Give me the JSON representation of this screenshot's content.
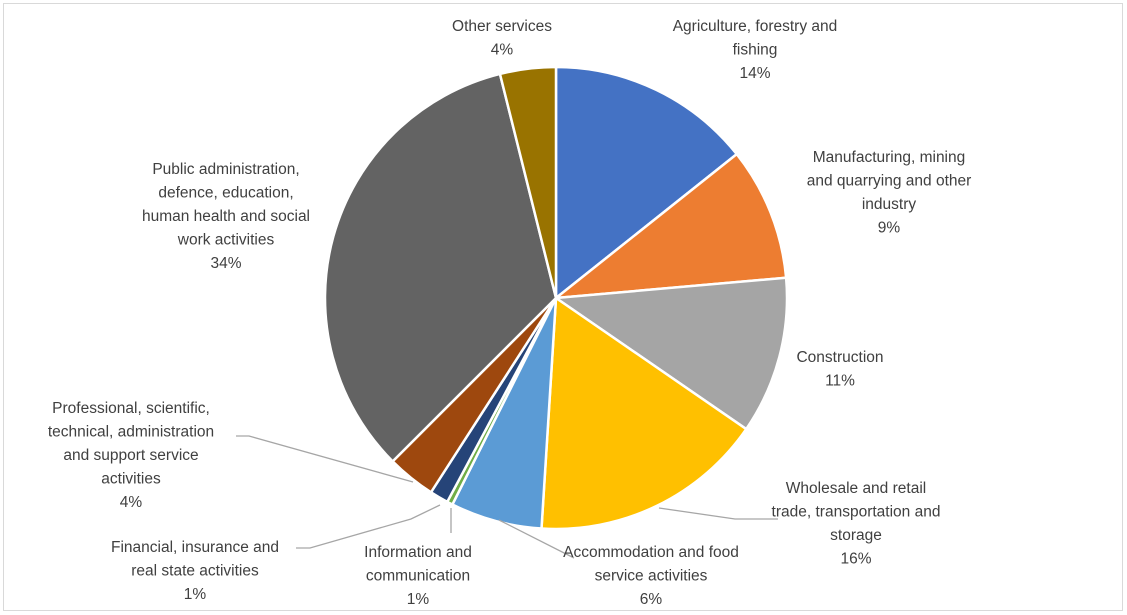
{
  "chart_data": {
    "type": "pie",
    "title": "",
    "start_angle_deg": 0,
    "direction": "clockwise",
    "slices": [
      {
        "name": "Agriculture, forestry and fishing",
        "label_lines": [
          "Agriculture, forestry and",
          "fishing"
        ],
        "pct_label": "14%",
        "value": 14.3,
        "color": "#4472C4"
      },
      {
        "name": "Manufacturing, mining and quarrying and other industry",
        "label_lines": [
          "Manufacturing, mining",
          "and quarrying and other",
          "industry"
        ],
        "pct_label": "9%",
        "value": 9.3,
        "color": "#ED7D31"
      },
      {
        "name": "Construction",
        "label_lines": [
          "Construction"
        ],
        "pct_label": "11%",
        "value": 11.0,
        "color": "#A5A5A5"
      },
      {
        "name": "Wholesale and retail trade, transportation and storage",
        "label_lines": [
          "Wholesale and retail",
          "trade, transportation and",
          "storage"
        ],
        "pct_label": "16%",
        "value": 16.4,
        "color": "#FFC000"
      },
      {
        "name": "Accommodation and food service activities",
        "label_lines": [
          "Accommodation and food",
          "service activities"
        ],
        "pct_label": "6%",
        "value": 6.4,
        "color": "#5B9BD5"
      },
      {
        "name": "Information and communication",
        "label_lines": [
          "Information and",
          "communication"
        ],
        "pct_label": "1%",
        "value": 0.4,
        "color": "#70AD47"
      },
      {
        "name": "Financial, insurance and real state activities",
        "label_lines": [
          "Financial, insurance and",
          "real state activities"
        ],
        "pct_label": "1%",
        "value": 1.3,
        "color": "#264478"
      },
      {
        "name": "Professional, scientific, technical, administration and support service activities",
        "label_lines": [
          "Professional, scientific,",
          "technical, administration",
          "and support service",
          "activities"
        ],
        "pct_label": "4%",
        "value": 3.4,
        "color": "#9E480E"
      },
      {
        "name": "Public administration, defence, education, human health and social work activities",
        "label_lines": [
          "Public administration,",
          "defence, education,",
          "human health and social",
          "work activities"
        ],
        "pct_label": "34%",
        "value": 33.6,
        "color": "#636363"
      },
      {
        "name": "Other services",
        "label_lines": [
          "Other services"
        ],
        "pct_label": "4%",
        "value": 3.9,
        "color": "#997300"
      }
    ]
  }
}
